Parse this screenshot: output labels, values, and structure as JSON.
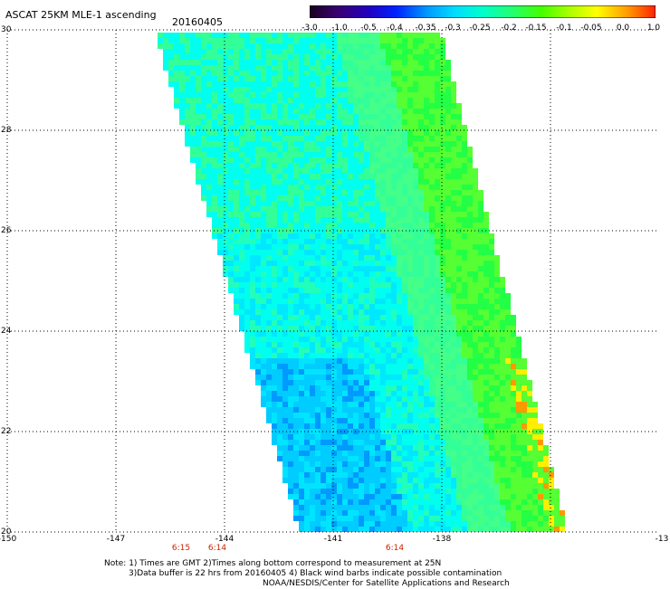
{
  "header": {
    "title": "ASCAT 25KM MLE-1 ascending",
    "date": "20160405"
  },
  "colorbar": {
    "labels": [
      "-3.0",
      "-1.0",
      "-0.5",
      "-0.4",
      "-0.35",
      "-0.3",
      "-0.25",
      "-0.2",
      "-0.15",
      "-0.1",
      "-0.05",
      "0.0",
      "1.0"
    ],
    "colors": [
      "#1a0020",
      "#3a0070",
      "#2200b0",
      "#0033ff",
      "#0099ff",
      "#00ddff",
      "#00ffcc",
      "#22ff66",
      "#44ff00",
      "#aaff00",
      "#ffff00",
      "#ff9900",
      "#ff2200"
    ]
  },
  "axes": {
    "lat_labels": [
      "20",
      "22",
      "24",
      "26",
      "28",
      "30"
    ],
    "lon_labels": [
      "-150",
      "-147",
      "-144",
      "-141",
      "-138",
      "-13"
    ]
  },
  "times": [
    {
      "label": "6:15",
      "lon": -145.2
    },
    {
      "label": "6:14",
      "lon": -144.2
    },
    {
      "label": "6:14",
      "lon": -139.3
    }
  ],
  "notes": {
    "line1": "Note: 1) Times are GMT 2)Times along bottom correspond to measurement at 25N",
    "line2": "3)Data buffer is 22 hrs from 20160405 4) Black wind barbs indicate possible contamination",
    "line3": "NOAA/NESDIS/Center for Satellite Applications and Research"
  },
  "colors": {
    "cyan": "#00ffee",
    "light_green": "#33ff99",
    "green": "#22ff44",
    "blue": "#0099ff",
    "yellow": "#ffee00",
    "orange": "#ff9900"
  }
}
